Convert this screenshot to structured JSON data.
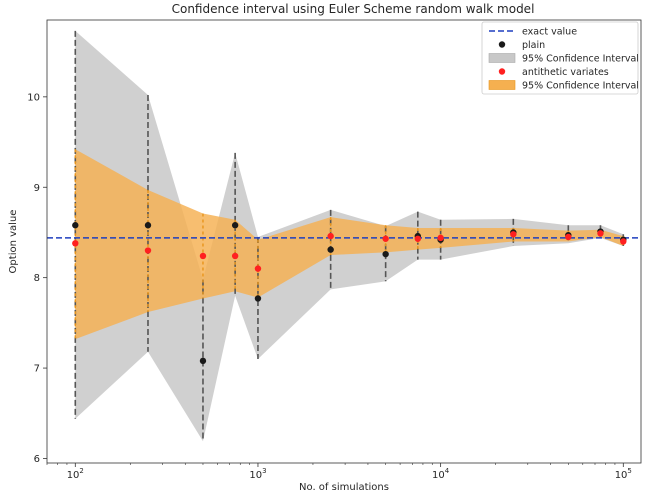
{
  "chart_data": {
    "type": "scatter",
    "title": "Confidence interval using Euler Scheme random walk model",
    "xlabel": "No. of simulations",
    "ylabel": "Option value",
    "xscale": "log",
    "xlim": [
      70,
      125000
    ],
    "ylim": [
      5.95,
      10.85
    ],
    "x_ticks": [
      {
        "value": 100,
        "base": "10",
        "exp": "2"
      },
      {
        "value": 1000,
        "base": "10",
        "exp": "3"
      },
      {
        "value": 10000,
        "base": "10",
        "exp": "4"
      },
      {
        "value": 100000,
        "base": "10",
        "exp": "5"
      }
    ],
    "y_ticks": [
      {
        "value": 6,
        "label": "6"
      },
      {
        "value": 7,
        "label": "7"
      },
      {
        "value": 8,
        "label": "8"
      },
      {
        "value": 9,
        "label": "9"
      },
      {
        "value": 10,
        "label": "10"
      }
    ],
    "legend_position": "top-right",
    "exact_value": {
      "name": "exact value",
      "y": 8.44,
      "color": "#1f3fbf"
    },
    "x": [
      100,
      250,
      500,
      750,
      1000,
      2500,
      5000,
      7500,
      10000,
      25000,
      50000,
      75000,
      100000
    ],
    "series": [
      {
        "name": "plain",
        "color": "#1a1a1a",
        "values": [
          8.58,
          8.58,
          7.08,
          8.58,
          7.77,
          8.31,
          8.26,
          8.46,
          8.42,
          8.5,
          8.47,
          8.51,
          8.42
        ],
        "ci_name": "95% Confidence Interval",
        "ci_color": "#c8c8c8",
        "ci_lower": [
          6.44,
          7.18,
          6.19,
          7.8,
          7.1,
          7.87,
          7.96,
          8.2,
          8.2,
          8.35,
          8.38,
          8.44,
          8.35
        ],
        "ci_upper": [
          10.73,
          10.02,
          7.98,
          9.38,
          8.45,
          8.75,
          8.57,
          8.73,
          8.64,
          8.65,
          8.58,
          8.58,
          8.48
        ]
      },
      {
        "name": "antithetic variates",
        "color": "#ff2020",
        "values": [
          8.38,
          8.3,
          8.24,
          8.24,
          8.1,
          8.46,
          8.43,
          8.43,
          8.44,
          8.48,
          8.45,
          8.49,
          8.4
        ],
        "ci_name": "95% Confidence Interval",
        "ci_color": "#f5b050",
        "ci_lower": [
          7.32,
          7.62,
          7.77,
          7.85,
          7.78,
          8.25,
          8.28,
          8.31,
          8.33,
          8.4,
          8.4,
          8.45,
          8.35
        ],
        "ci_upper": [
          9.42,
          8.97,
          8.71,
          8.64,
          8.42,
          8.67,
          8.58,
          8.55,
          8.55,
          8.55,
          8.52,
          8.53,
          8.46
        ]
      }
    ]
  }
}
